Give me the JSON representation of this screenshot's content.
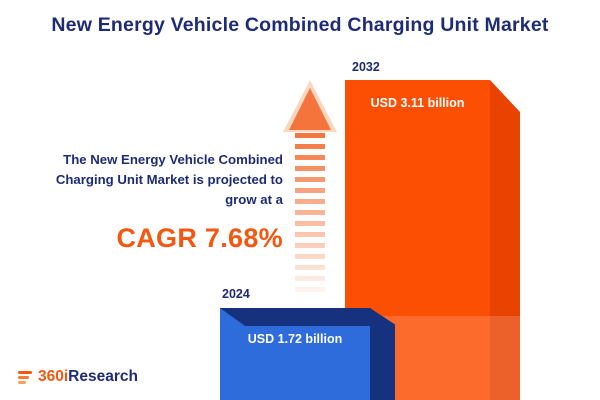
{
  "title": "New Energy Vehicle Combined Charging Unit Market",
  "description": {
    "lines": [
      "The New Energy Vehicle Combined",
      "Charging Unit Market is projected to",
      "grow at a"
    ],
    "cagr": "CAGR 7.68%"
  },
  "chart_data": {
    "type": "bar",
    "title": "New Energy Vehicle Combined Charging Unit Market",
    "categories": [
      "2024",
      "2032"
    ],
    "values": [
      1.72,
      3.11
    ],
    "unit": "USD billion",
    "value_labels": [
      "USD 1.72 billion",
      "USD 3.11 billion"
    ],
    "cagr_percent": 7.68,
    "legend": "none",
    "grid": false,
    "bar_colors": [
      "#2e6bdb",
      "#fc4f03"
    ]
  },
  "logo": {
    "prefix": "360i",
    "suffix": "Research"
  },
  "colors": {
    "navy": "#1e2c77",
    "orange": "#f4570f",
    "bar_blue": "#2e6bdb",
    "bar_blue_dark": "#16327e",
    "bar_orange": "#fc4f03",
    "bar_orange_dark": "#e84300",
    "arrow": "#f4743c"
  }
}
